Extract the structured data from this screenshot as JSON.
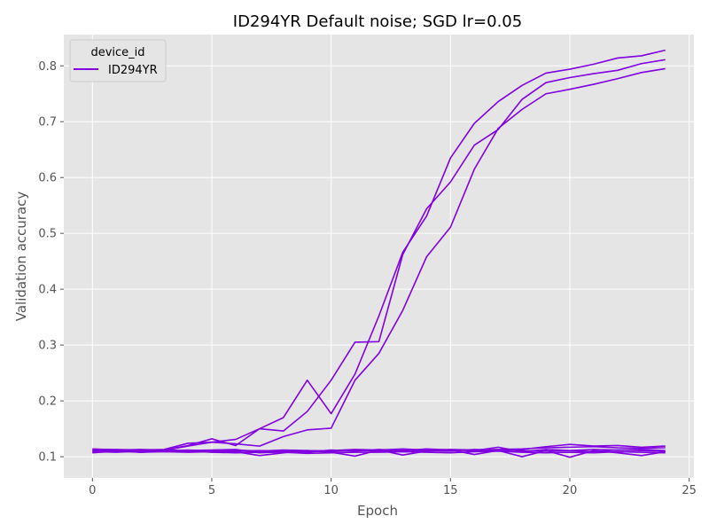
{
  "chart_data": {
    "type": "line",
    "title": "ID294YR Default noise; SGD lr=0.05",
    "xlabel": "Epoch",
    "ylabel": "Validation accuracy",
    "xlim": [
      -1.2,
      25.2
    ],
    "ylim": [
      0.062,
      0.856
    ],
    "xticks": [
      0,
      5,
      10,
      15,
      20,
      25
    ],
    "yticks": [
      0.1,
      0.2,
      0.3,
      0.4,
      0.5,
      0.6,
      0.7,
      0.8
    ],
    "grid": true,
    "legend": {
      "title": "device_id",
      "position": "top-left",
      "entries": [
        "ID294YR"
      ]
    },
    "line_color": "#8000e0",
    "x": [
      0,
      1,
      2,
      3,
      4,
      5,
      6,
      7,
      8,
      9,
      10,
      11,
      12,
      13,
      14,
      15,
      16,
      17,
      18,
      19,
      20,
      21,
      22,
      23,
      24
    ],
    "series": [
      {
        "values": [
          0.108,
          0.109,
          0.11,
          0.111,
          0.119,
          0.126,
          0.131,
          0.15,
          0.17,
          0.237,
          0.177,
          0.248,
          0.352,
          0.466,
          0.531,
          0.635,
          0.697,
          0.736,
          0.765,
          0.787,
          0.794,
          0.803,
          0.814,
          0.818,
          0.828
        ]
      },
      {
        "values": [
          0.11,
          0.11,
          0.111,
          0.112,
          0.12,
          0.132,
          0.12,
          0.15,
          0.146,
          0.181,
          0.237,
          0.305,
          0.306,
          0.462,
          0.544,
          0.592,
          0.658,
          0.686,
          0.74,
          0.77,
          0.779,
          0.786,
          0.792,
          0.804,
          0.811
        ]
      },
      {
        "values": [
          0.112,
          0.111,
          0.112,
          0.113,
          0.124,
          0.126,
          0.123,
          0.119,
          0.136,
          0.148,
          0.151,
          0.237,
          0.285,
          0.362,
          0.458,
          0.511,
          0.615,
          0.688,
          0.722,
          0.75,
          0.758,
          0.767,
          0.777,
          0.788,
          0.795
        ]
      },
      {
        "values": [
          0.108,
          0.111,
          0.108,
          0.11,
          0.112,
          0.11,
          0.109,
          0.102,
          0.107,
          0.111,
          0.108,
          0.101,
          0.112,
          0.103,
          0.11,
          0.112,
          0.104,
          0.111,
          0.1,
          0.111,
          0.099,
          0.111,
          0.107,
          0.102,
          0.109
        ]
      },
      {
        "values": [
          0.114,
          0.112,
          0.113,
          0.112,
          0.11,
          0.111,
          0.112,
          0.11,
          0.111,
          0.11,
          0.111,
          0.113,
          0.112,
          0.114,
          0.112,
          0.113,
          0.112,
          0.113,
          0.114,
          0.116,
          0.117,
          0.118,
          0.116,
          0.115,
          0.116
        ]
      },
      {
        "values": [
          0.111,
          0.11,
          0.109,
          0.11,
          0.111,
          0.112,
          0.113,
          0.107,
          0.109,
          0.108,
          0.112,
          0.11,
          0.113,
          0.111,
          0.114,
          0.112,
          0.111,
          0.117,
          0.109,
          0.113,
          0.111,
          0.109,
          0.112,
          0.113,
          0.111
        ]
      },
      {
        "values": [
          0.109,
          0.108,
          0.11,
          0.109,
          0.108,
          0.109,
          0.11,
          0.111,
          0.11,
          0.111,
          0.109,
          0.112,
          0.11,
          0.112,
          0.111,
          0.11,
          0.113,
          0.112,
          0.113,
          0.118,
          0.122,
          0.119,
          0.12,
          0.117,
          0.119
        ]
      },
      {
        "values": [
          0.113,
          0.113,
          0.112,
          0.112,
          0.111,
          0.11,
          0.111,
          0.11,
          0.112,
          0.111,
          0.11,
          0.111,
          0.112,
          0.11,
          0.111,
          0.112,
          0.111,
          0.112,
          0.111,
          0.11,
          0.111,
          0.113,
          0.112,
          0.111,
          0.11
        ]
      },
      {
        "values": [
          0.107,
          0.11,
          0.108,
          0.109,
          0.11,
          0.108,
          0.107,
          0.108,
          0.108,
          0.106,
          0.107,
          0.108,
          0.108,
          0.109,
          0.108,
          0.107,
          0.109,
          0.11,
          0.108,
          0.107,
          0.108,
          0.107,
          0.109,
          0.108,
          0.107
        ]
      }
    ]
  }
}
